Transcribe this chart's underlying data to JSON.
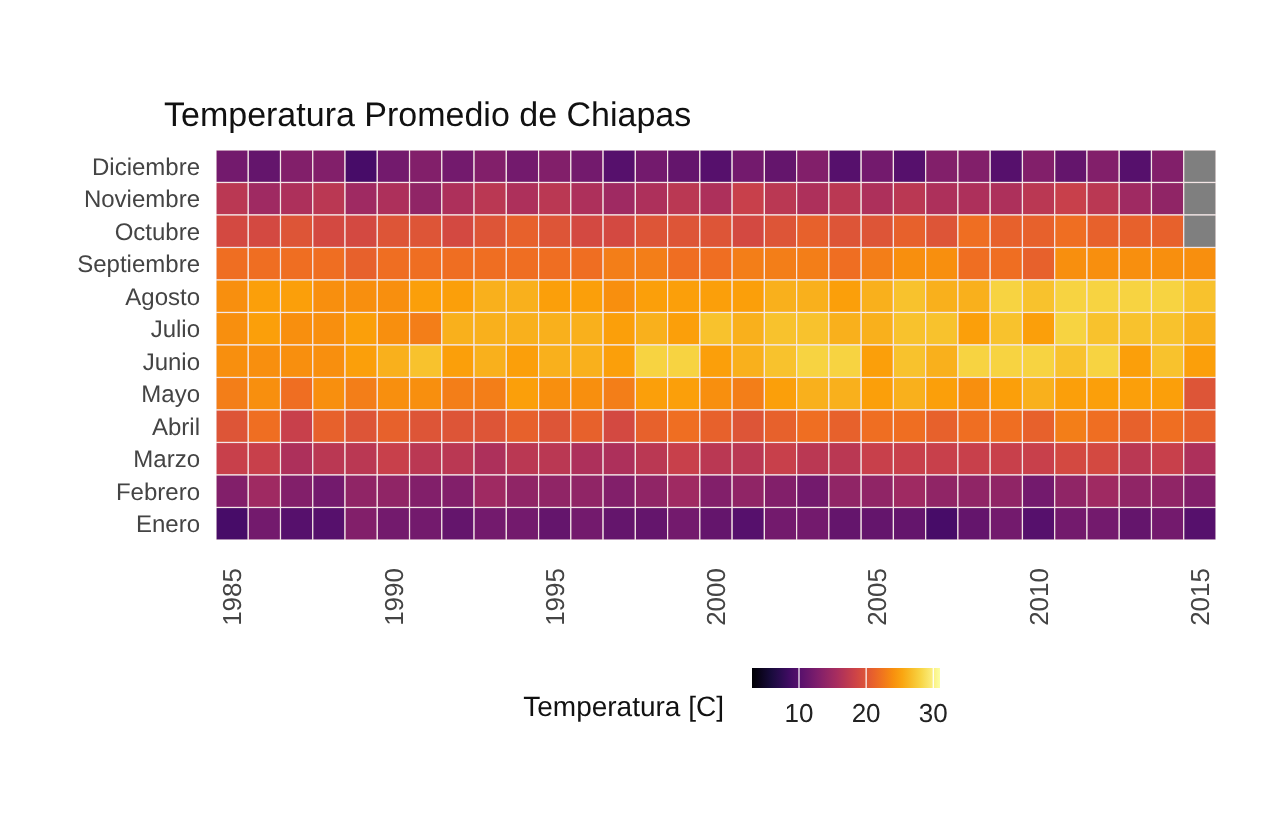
{
  "chart_data": {
    "type": "heatmap",
    "title": "Temperatura Promedio de Chiapas",
    "legend_title": "Temperatura [C]",
    "grid": false,
    "categories": [
      "1985",
      null,
      null,
      null,
      null,
      "1990",
      null,
      null,
      null,
      null,
      "1995",
      null,
      null,
      null,
      null,
      "2000",
      null,
      null,
      null,
      null,
      "2005",
      null,
      null,
      null,
      null,
      "2010",
      null,
      null,
      null,
      null,
      "2015"
    ],
    "y_categories": [
      "Diciembre",
      "Noviembre",
      "Octubre",
      "Septiembre",
      "Agosto",
      "Julio",
      "Junio",
      "Mayo",
      "Abril",
      "Marzo",
      "Febrero",
      "Enero"
    ],
    "cells": [
      [
        12,
        11,
        13,
        13,
        9,
        12,
        13,
        12,
        13,
        12,
        13,
        12,
        10,
        12,
        11,
        10,
        12,
        11,
        13,
        10,
        12,
        10,
        13,
        13,
        10,
        13,
        11,
        13,
        10,
        13,
        null
      ],
      [
        17,
        15,
        16,
        17,
        15,
        16,
        14,
        16,
        17,
        16,
        17,
        16,
        15,
        16,
        17,
        16,
        18,
        17,
        16,
        17,
        16,
        17,
        16,
        16,
        16,
        17,
        18,
        17,
        15,
        14,
        null
      ],
      [
        19,
        19,
        20,
        19,
        19,
        20,
        20,
        19,
        20,
        21,
        20,
        19,
        19,
        20,
        20,
        20,
        19,
        20,
        21,
        20,
        20,
        21,
        20,
        22,
        21,
        21,
        22,
        21,
        21,
        21,
        null
      ],
      [
        22,
        22,
        22,
        22,
        21,
        22,
        22,
        22,
        22,
        22,
        22,
        22,
        23,
        23,
        22,
        22,
        23,
        23,
        23,
        22,
        23,
        24,
        24,
        22,
        22,
        21,
        24,
        24,
        24,
        24,
        24
      ],
      [
        24,
        25,
        25,
        24,
        24,
        24,
        25,
        25,
        26,
        26,
        25,
        25,
        24,
        25,
        25,
        25,
        25,
        26,
        26,
        25,
        26,
        27,
        26,
        26,
        28,
        27,
        28,
        28,
        28,
        28,
        27
      ],
      [
        24,
        25,
        24,
        24,
        25,
        24,
        23,
        26,
        26,
        26,
        26,
        26,
        25,
        26,
        25,
        27,
        26,
        27,
        27,
        26,
        26,
        27,
        27,
        25,
        27,
        25,
        28,
        27,
        27,
        27,
        26
      ],
      [
        24,
        24,
        24,
        24,
        25,
        26,
        27,
        25,
        26,
        25,
        26,
        26,
        25,
        28,
        28,
        25,
        26,
        27,
        28,
        28,
        25,
        27,
        26,
        28,
        28,
        28,
        27,
        28,
        25,
        27,
        25
      ],
      [
        23,
        24,
        22,
        24,
        23,
        24,
        24,
        23,
        23,
        25,
        24,
        24,
        23,
        25,
        25,
        24,
        23,
        25,
        26,
        26,
        25,
        26,
        25,
        24,
        25,
        26,
        25,
        25,
        25,
        25,
        20
      ],
      [
        20,
        22,
        18,
        21,
        20,
        21,
        20,
        20,
        20,
        21,
        20,
        21,
        19,
        21,
        22,
        21,
        20,
        21,
        22,
        21,
        22,
        22,
        21,
        22,
        22,
        21,
        23,
        22,
        21,
        22,
        21
      ],
      [
        18,
        18,
        16,
        17,
        17,
        18,
        17,
        17,
        16,
        17,
        17,
        16,
        16,
        17,
        18,
        17,
        17,
        18,
        17,
        17,
        18,
        18,
        18,
        18,
        18,
        18,
        19,
        19,
        17,
        18,
        16
      ],
      [
        13,
        15,
        13,
        12,
        14,
        14,
        13,
        13,
        15,
        14,
        14,
        14,
        13,
        14,
        15,
        13,
        14,
        13,
        12,
        14,
        14,
        15,
        14,
        14,
        14,
        12,
        14,
        15,
        14,
        14,
        13
      ],
      [
        9,
        12,
        10,
        10,
        13,
        12,
        12,
        11,
        12,
        12,
        11,
        12,
        11,
        11,
        12,
        11,
        10,
        12,
        12,
        11,
        11,
        11,
        9,
        11,
        12,
        10,
        12,
        12,
        11,
        12,
        10
      ]
    ],
    "clim": [
      3,
      31
    ],
    "cticks": [
      10,
      20,
      30
    ]
  }
}
